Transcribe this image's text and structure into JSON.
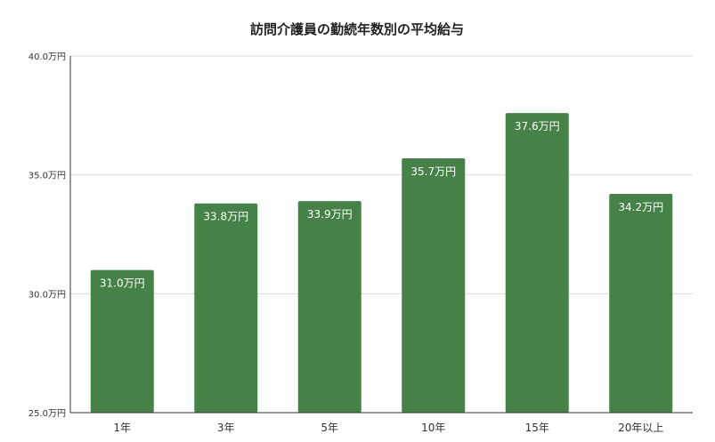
{
  "chart_data": {
    "type": "bar",
    "title": "訪問介護員の勤続年数別の平均給与",
    "xlabel": "",
    "ylabel": "",
    "categories": [
      "1年",
      "3年",
      "5年",
      "10年",
      "15年",
      "20年以上"
    ],
    "values": [
      31.0,
      33.8,
      33.9,
      35.7,
      37.6,
      34.2
    ],
    "data_labels": [
      "31.0万円",
      "33.8万円",
      "33.9万円",
      "35.7万円",
      "37.6万円",
      "34.2万円"
    ],
    "ylim": [
      25,
      40
    ],
    "yticks": [
      25,
      30,
      35,
      40
    ],
    "ytick_labels": [
      "25.0万円",
      "30.0万円",
      "35.0万円",
      "40.0万円"
    ],
    "grid": true,
    "legend": "none",
    "colors": {
      "bar": "#468247"
    }
  }
}
